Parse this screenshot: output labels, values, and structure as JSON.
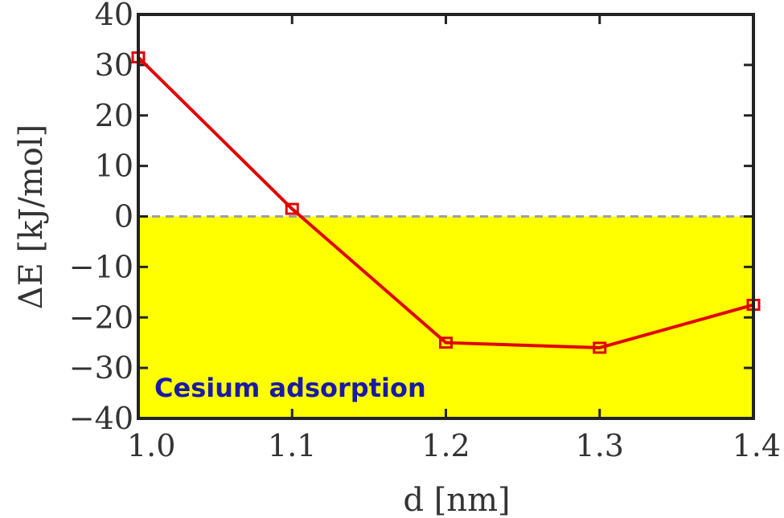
{
  "chart_data": {
    "type": "line",
    "xlabel": "d [nm]",
    "ylabel": "ΔE [kJ/mol]",
    "xlim": [
      1.0,
      1.4
    ],
    "ylim": [
      -40,
      40
    ],
    "x_ticks": [
      "1.0",
      "1.1",
      "1.2",
      "1.3",
      "1.4"
    ],
    "y_ticks": [
      "40",
      "30",
      "20",
      "10",
      "0",
      "−10",
      "−20",
      "−30",
      "−40"
    ],
    "series": [
      {
        "x": [
          1.0,
          1.1,
          1.2,
          1.3,
          1.4
        ],
        "y": [
          31.5,
          1.5,
          -25,
          -26,
          -17.5
        ]
      }
    ],
    "reference_line": {
      "y": 0,
      "style": "dashed"
    },
    "shaded_region": {
      "y_from": -40,
      "y_to": 0,
      "color": "#ffff00"
    },
    "annotation": "Cesium adsorption",
    "colors": {
      "line": "#e00000",
      "fill": "#ffff00",
      "annotation": "#1a1aa6",
      "frame": "#222222"
    }
  }
}
